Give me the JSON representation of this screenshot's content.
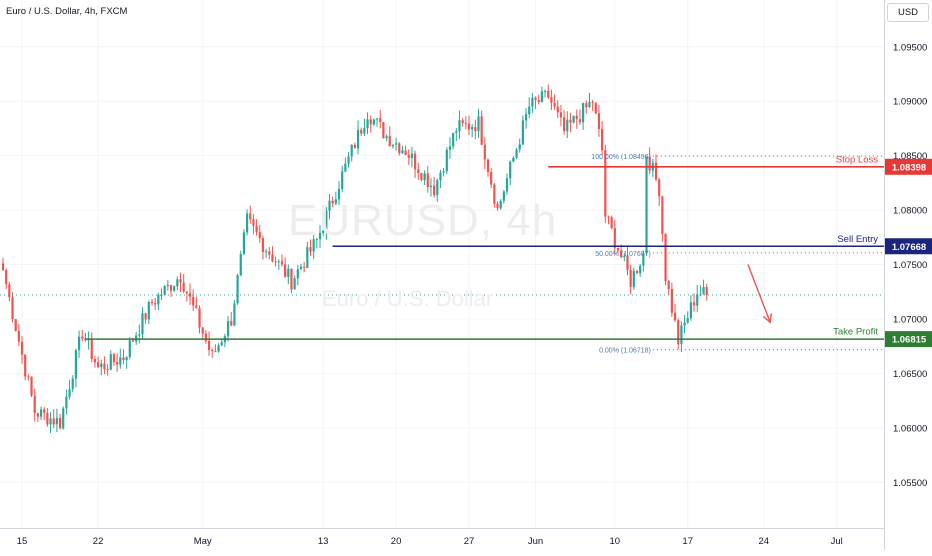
{
  "symbol": {
    "title": "Euro / U.S. Dollar, 4h, FXCM",
    "watermark_ticker": "EURUSD, 4h",
    "watermark_desc": "Euro / U.S. Dollar",
    "currency": "USD"
  },
  "colors": {
    "up": "#26a69a",
    "down": "#ef5350",
    "stop_loss": "#e53935",
    "sell_entry": "#1a237e",
    "take_profit": "#2e7d32",
    "fib": "#4a79b4",
    "arrow": "#ef5350",
    "last_price_line": "#26a69a"
  },
  "chart_data": {
    "type": "candlestick",
    "title": "Euro / U.S. Dollar, 4h, FXCM",
    "ylim": [
      1.0508,
      1.0993
    ],
    "price_ticks": [
      "1.09500",
      "1.09000",
      "1.08500",
      "1.08000",
      "1.07500",
      "1.07000",
      "1.06500",
      "1.06000",
      "1.05500"
    ],
    "time_ticks": [
      {
        "label": "15",
        "bar": 6
      },
      {
        "label": "22",
        "bar": 30
      },
      {
        "label": "May",
        "bar": 63
      },
      {
        "label": "13",
        "bar": 101
      },
      {
        "label": "20",
        "bar": 124
      },
      {
        "label": "27",
        "bar": 147
      },
      {
        "label": "Jun",
        "bar": 168
      },
      {
        "label": "10",
        "bar": 193
      },
      {
        "label": "17",
        "bar": 216
      },
      {
        "label": "24",
        "bar": 240
      },
      {
        "label": "Jul",
        "bar": 263
      }
    ],
    "anchors": [
      {
        "bar": 0,
        "close": 1.0745
      },
      {
        "bar": 10,
        "close": 1.0615
      },
      {
        "bar": 18,
        "close": 1.0605
      },
      {
        "bar": 25,
        "close": 1.0688
      },
      {
        "bar": 30,
        "close": 1.0655
      },
      {
        "bar": 38,
        "close": 1.0665
      },
      {
        "bar": 47,
        "close": 1.0715
      },
      {
        "bar": 56,
        "close": 1.074
      },
      {
        "bar": 66,
        "close": 1.0665
      },
      {
        "bar": 72,
        "close": 1.07
      },
      {
        "bar": 77,
        "close": 1.079
      },
      {
        "bar": 83,
        "close": 1.0765
      },
      {
        "bar": 91,
        "close": 1.0735
      },
      {
        "bar": 99,
        "close": 1.0772
      },
      {
        "bar": 106,
        "close": 1.0825
      },
      {
        "bar": 115,
        "close": 1.089
      },
      {
        "bar": 121,
        "close": 1.0868
      },
      {
        "bar": 127,
        "close": 1.0855
      },
      {
        "bar": 136,
        "close": 1.082
      },
      {
        "bar": 143,
        "close": 1.0875
      },
      {
        "bar": 150,
        "close": 1.088
      },
      {
        "bar": 156,
        "close": 1.08
      },
      {
        "bar": 166,
        "close": 1.0895
      },
      {
        "bar": 172,
        "close": 1.0905
      },
      {
        "bar": 177,
        "close": 1.0872
      },
      {
        "bar": 186,
        "close": 1.09
      },
      {
        "bar": 189,
        "close": 1.0855
      },
      {
        "bar": 190,
        "close": 1.0795
      },
      {
        "bar": 194,
        "close": 1.0765
      },
      {
        "bar": 198,
        "close": 1.0735
      },
      {
        "bar": 202,
        "close": 1.076
      },
      {
        "bar": 203,
        "close": 1.0852
      },
      {
        "bar": 207,
        "close": 1.082
      },
      {
        "bar": 209,
        "close": 1.074
      },
      {
        "bar": 213,
        "close": 1.068
      },
      {
        "bar": 219,
        "close": 1.0725
      },
      {
        "bar": 222,
        "close": 1.0722
      }
    ],
    "last_close": 1.0722,
    "levels": [
      {
        "name": "Stop Loss",
        "value": 1.08398,
        "label": "1.08398"
      },
      {
        "name": "Sell Entry",
        "value": 1.07668,
        "label": "1.07668"
      },
      {
        "name": "Take Profit",
        "value": 1.06815,
        "label": "1.06815"
      }
    ],
    "fib_levels": [
      {
        "label": "100.00% (1.08496)",
        "value": 1.08496
      },
      {
        "label": "50.00% (1.07607)",
        "value": 1.07607
      },
      {
        "label": "0.00% (1.06718)",
        "value": 1.06718
      }
    ],
    "sl_start_bar": 172,
    "entry_start_bar": 104,
    "tp_start_bar": 26,
    "fib_start_bar": 205,
    "arrow": {
      "from_bar": 235,
      "from_value": 1.075,
      "to_bar": 242,
      "to_value": 1.0697
    }
  }
}
